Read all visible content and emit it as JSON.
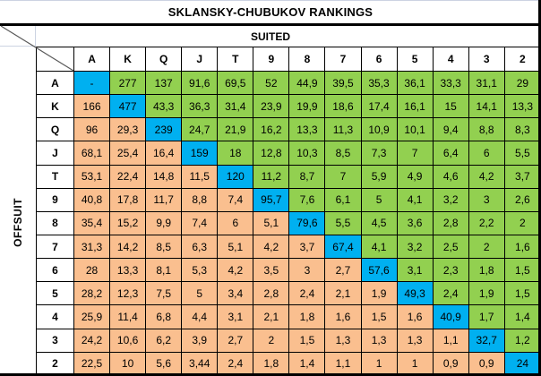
{
  "title": "SKLANSKY-CHUBUKOV RANKINGS",
  "axis_labels": {
    "suited": "SUITED",
    "offsuit": "OFFSUIT"
  },
  "colors": {
    "suited_green": "#92D050",
    "offsuit_orange": "#FABF8F",
    "pair_blue": "#00B0F0",
    "grid_border": "#000000",
    "diagonal_line": "#595959"
  },
  "chart_data": {
    "type": "table",
    "title": "SKLANSKY-CHUBUKOV RANKINGS",
    "top_axis_label": "SUITED",
    "left_axis_label": "OFFSUIT",
    "columns": [
      "A",
      "K",
      "Q",
      "J",
      "T",
      "9",
      "8",
      "7",
      "6",
      "5",
      "4",
      "3",
      "2"
    ],
    "row_labels": [
      "A",
      "K",
      "Q",
      "J",
      "T",
      "9",
      "8",
      "7",
      "6",
      "5",
      "4",
      "3",
      "2"
    ],
    "matrix": [
      [
        "-",
        "277",
        "137",
        "91,6",
        "69,5",
        "52",
        "44,9",
        "39,5",
        "35,3",
        "36,1",
        "33,3",
        "31,1",
        "29"
      ],
      [
        "166",
        "477",
        "43,3",
        "36,3",
        "31,4",
        "23,9",
        "19,9",
        "18,6",
        "17,4",
        "16,1",
        "15",
        "14,1",
        "13,3"
      ],
      [
        "96",
        "29,3",
        "239",
        "24,7",
        "21,9",
        "16,2",
        "13,3",
        "11,3",
        "10,9",
        "10,1",
        "9,4",
        "8,8",
        "8,3"
      ],
      [
        "68,1",
        "25,4",
        "16,4",
        "159",
        "18",
        "12,8",
        "10,3",
        "8,5",
        "7,3",
        "7",
        "6,4",
        "6",
        "5,5"
      ],
      [
        "53,1",
        "22,4",
        "14,8",
        "11,5",
        "120",
        "11,2",
        "8,7",
        "7",
        "5,9",
        "4,9",
        "4,6",
        "4,2",
        "3,7"
      ],
      [
        "40,8",
        "17,8",
        "11,7",
        "8,8",
        "7,4",
        "95,7",
        "7,6",
        "6,1",
        "5",
        "4,1",
        "3,2",
        "3",
        "2,6"
      ],
      [
        "35,4",
        "15,2",
        "9,9",
        "7,4",
        "6",
        "5,1",
        "79,6",
        "5,5",
        "4,5",
        "3,6",
        "2,8",
        "2,2",
        "2"
      ],
      [
        "31,3",
        "14,2",
        "8,5",
        "6,3",
        "5,1",
        "4,2",
        "3,7",
        "67,4",
        "4,1",
        "3,2",
        "2,5",
        "2",
        "1,6"
      ],
      [
        "28",
        "13,3",
        "8,1",
        "5,3",
        "4,2",
        "3,5",
        "3",
        "2,7",
        "57,6",
        "3,1",
        "2,3",
        "1,8",
        "1,5"
      ],
      [
        "28,2",
        "12,3",
        "7,5",
        "5",
        "3,4",
        "2,8",
        "2,4",
        "2,1",
        "1,9",
        "49,3",
        "2,4",
        "1,9",
        "1,5"
      ],
      [
        "25,9",
        "11,4",
        "6,8",
        "4,4",
        "3,1",
        "2,1",
        "1,8",
        "1,6",
        "1,5",
        "1,6",
        "40,9",
        "1,7",
        "1,4"
      ],
      [
        "24,2",
        "10,6",
        "6,2",
        "3,9",
        "2,7",
        "2",
        "1,5",
        "1,3",
        "1,3",
        "1,3",
        "1,1",
        "32,7",
        "1,2"
      ],
      [
        "22,5",
        "10",
        "5,6",
        "3,44",
        "2,4",
        "1,8",
        "1,4",
        "1,1",
        "1",
        "1",
        "0,9",
        "0,9",
        "24"
      ]
    ],
    "cell_semantics": {
      "upper_right_triangle": "suited hands (green)",
      "lower_left_triangle": "offsuit hands (orange)",
      "diagonal": "pocket pairs (blue)"
    }
  }
}
